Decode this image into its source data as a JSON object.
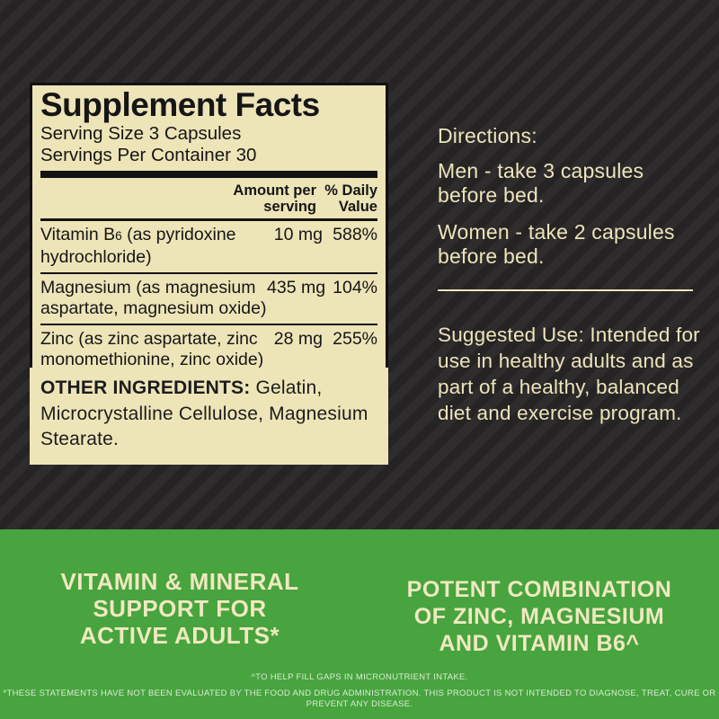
{
  "supplement_panel": {
    "title": "Supplement Facts",
    "serving_size": "Serving Size 3 Capsules",
    "servings_per_container": "Servings Per Container 30",
    "columns": {
      "amount": "Amount per serving",
      "daily_value": "% Daily Value"
    },
    "rows": [
      {
        "prefix": "Vitamin B",
        "sub": "6",
        "suffix": " (as pyridoxine hydrochloride)",
        "amount": "10 mg",
        "daily_value": "588%"
      },
      {
        "name": "Magnesium (as magnesium aspartate, magnesium oxide)",
        "amount": "435 mg",
        "daily_value": "104%"
      },
      {
        "name": "Zinc (as zinc aspartate, zinc monomethionine, zinc oxide)",
        "amount": "28 mg",
        "daily_value": "255%"
      }
    ]
  },
  "other_ingredients": {
    "label": "OTHER INGREDIENTS:",
    "text": " Gelatin, Microcrystalline Cellulose, Magnesium Stearate."
  },
  "directions": {
    "heading": "Directions:",
    "men": "Men - take 3 capsules before bed.",
    "women": "Women - take 2 capsules before bed.",
    "suggested_use": "Suggested Use: Intended for use in healthy adults and as part of a healthy, balanced diet and exercise program."
  },
  "green_section": {
    "left_headline": [
      "VITAMIN & MINERAL",
      "SUPPORT FOR",
      "ACTIVE ADULTS*"
    ],
    "right_headline": [
      "POTENT COMBINATION",
      "OF ZINC, MAGNESIUM",
      "AND VITAMIN B6^"
    ],
    "footnote1": "^TO HELP FILL GAPS IN MICRONUTRIENT INTAKE.",
    "footnote2": "*THESE STATEMENTS HAVE NOT BEEN EVALUATED BY THE FOOD AND DRUG ADMINISTRATION. THIS PRODUCT IS NOT INTENDED TO DIAGNOSE, TREAT, CURE OR PREVENT ANY DISEASE."
  },
  "colors": {
    "background_dark": "#262324",
    "background_stripe": "#2f2c2d",
    "panel_cream": "#EDE4B8",
    "ink_black": "#121212",
    "cream_text": "#ECE4BB",
    "green": "#47A43E",
    "footnote_text": "#DCEBD6"
  }
}
